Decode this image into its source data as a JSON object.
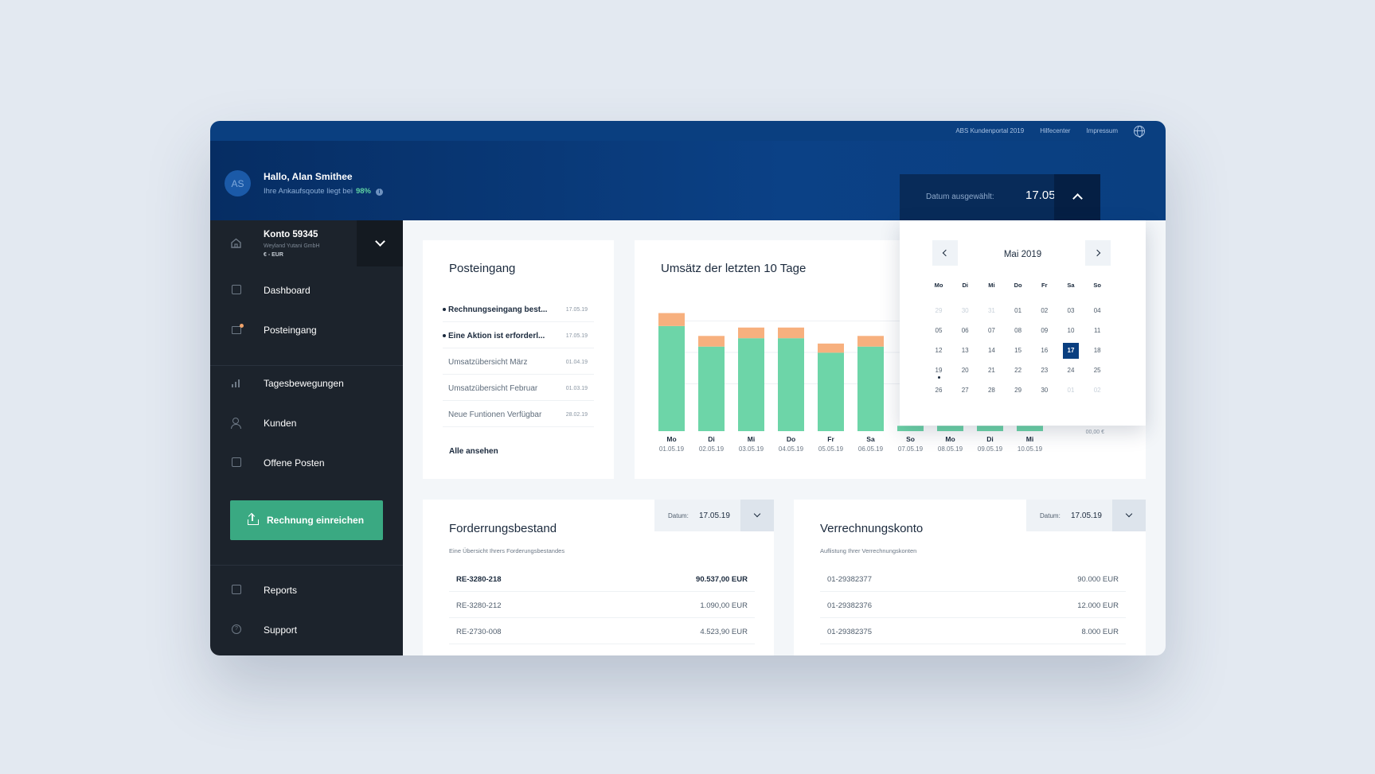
{
  "topbar": {
    "links": [
      "ABS Kundenportal 2019",
      "Hilfecenter",
      "Impressum"
    ]
  },
  "user": {
    "initials": "AS",
    "greeting": "Hallo, Alan Smithee",
    "quote_text": "Ihre Ankaufsqoute liegt bei",
    "quote_value": "98%"
  },
  "date_picker": {
    "label": "Datum ausgewählt:",
    "value": "17.05.19"
  },
  "account": {
    "name": "Konto 59345",
    "company": "Weyland Yutani GmbH",
    "currency": "€ - EUR"
  },
  "nav": {
    "dashboard": "Dashboard",
    "posteingang": "Posteingang",
    "tagesbewegungen": "Tagesbewegungen",
    "kunden": "Kunden",
    "offene_posten": "Offene Posten",
    "submit": "Rechnung einreichen",
    "reports": "Reports",
    "support": "Support"
  },
  "inbox": {
    "title": "Posteingang",
    "items": [
      {
        "text": "Rechnungseingang best...",
        "date": "17.05.19",
        "unread": true
      },
      {
        "text": "Eine Aktion ist erforderl...",
        "date": "17.05.19",
        "unread": true
      },
      {
        "text": "Umsatzübersicht März",
        "date": "01.04.19",
        "unread": false
      },
      {
        "text": "Umsatzübersicht Februar",
        "date": "01.03.19",
        "unread": false
      },
      {
        "text": "Neue Funtionen Verfügbar",
        "date": "28.02.19",
        "unread": false
      }
    ],
    "see_all": "Alle ansehen"
  },
  "chart_data": {
    "type": "bar",
    "title": "Umsätz der letzten 10 Tage",
    "categories": [
      "Mo",
      "Di",
      "Mi",
      "Do",
      "Fr",
      "Sa",
      "So",
      "Mo",
      "Di",
      "Mi"
    ],
    "dates": [
      "01.05.19",
      "02.05.19",
      "03.05.19",
      "04.05.19",
      "05.05.19",
      "06.05.19",
      "07.05.19",
      "08.05.19",
      "09.05.19",
      "10.05.19"
    ],
    "series": [
      {
        "color": "#6dd5a8",
        "values": [
          138,
          111,
          122,
          122,
          103,
          111,
          7,
          7,
          7,
          7
        ]
      },
      {
        "color": "#f7b07e",
        "values": [
          17,
          14,
          14,
          14,
          12,
          14,
          0,
          0,
          0,
          0
        ]
      }
    ],
    "ylim": [
      0,
      165
    ],
    "y_baseline_label": "00,00 €",
    "grid": true
  },
  "calendar": {
    "month": "Mai 2019",
    "weekdays": [
      "Mo",
      "Di",
      "Mi",
      "Do",
      "Fr",
      "Sa",
      "So"
    ],
    "weeks": [
      [
        "29",
        "30",
        "31",
        "01",
        "02",
        "03",
        "04"
      ],
      [
        "05",
        "06",
        "07",
        "08",
        "09",
        "10",
        "11"
      ],
      [
        "12",
        "13",
        "14",
        "15",
        "16",
        "17",
        "18"
      ],
      [
        "19",
        "20",
        "21",
        "22",
        "23",
        "24",
        "25"
      ],
      [
        "26",
        "27",
        "28",
        "29",
        "30",
        "01",
        "02"
      ]
    ],
    "selected": "17"
  },
  "forderung": {
    "title": "Forderrungsbestand",
    "desc": "Eine Übersicht Ihrers Forderungsbestandes",
    "date_label": "Datum:",
    "date_value": "17.05.19",
    "rows": [
      {
        "id": "RE-3280-218",
        "amount": "90.537,00 EUR"
      },
      {
        "id": "RE-3280-212",
        "amount": "1.090,00 EUR"
      },
      {
        "id": "RE-2730-008",
        "amount": "4.523,90 EUR"
      }
    ]
  },
  "verrechnung": {
    "title": "Verrechnungskonto",
    "desc": "Auflistung Ihrer Verrechnungskonten",
    "date_label": "Datum:",
    "date_value": "17.05.19",
    "rows": [
      {
        "id": "01-29382377",
        "amount": "90.000 EUR"
      },
      {
        "id": "01-29382376",
        "amount": "12.000 EUR"
      },
      {
        "id": "01-29382375",
        "amount": "8.000 EUR"
      }
    ]
  }
}
